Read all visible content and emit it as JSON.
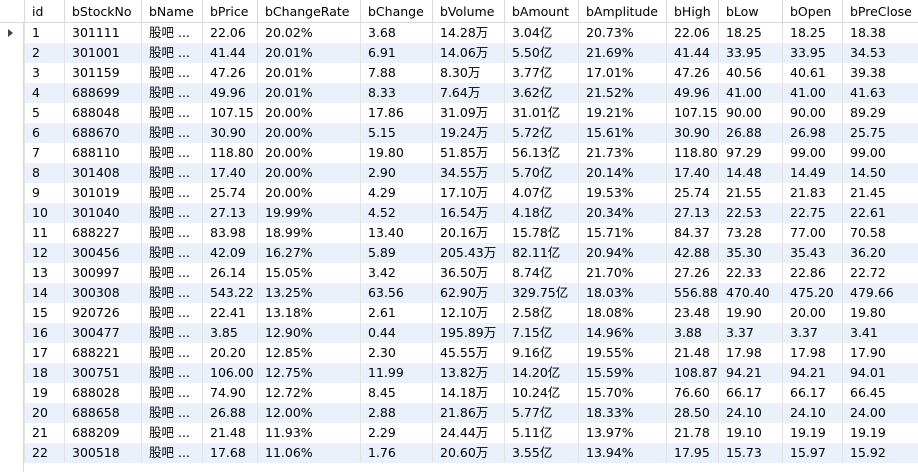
{
  "table": {
    "columns": [
      "id",
      "bStockNo",
      "bName",
      "bPrice",
      "bChangeRate",
      "bChange",
      "bVolume",
      "bAmount",
      "bAmplitude",
      "bHigh",
      "bLow",
      "bOpen",
      "bPreClose"
    ],
    "rows": [
      [
        "1",
        "301111",
        "股吧 ...",
        "22.06",
        "20.02%",
        "3.68",
        "14.28万",
        "3.04亿",
        "20.73%",
        "22.06",
        "18.25",
        "18.25",
        "18.38"
      ],
      [
        "2",
        "301001",
        "股吧 ...",
        "41.44",
        "20.01%",
        "6.91",
        "14.06万",
        "5.50亿",
        "21.69%",
        "41.44",
        "33.95",
        "33.95",
        "34.53"
      ],
      [
        "3",
        "301159",
        "股吧 ...",
        "47.26",
        "20.01%",
        "7.88",
        "8.30万",
        "3.77亿",
        "17.01%",
        "47.26",
        "40.56",
        "40.61",
        "39.38"
      ],
      [
        "4",
        "688699",
        "股吧 ...",
        "49.96",
        "20.01%",
        "8.33",
        "7.64万",
        "3.62亿",
        "21.52%",
        "49.96",
        "41.00",
        "41.00",
        "41.63"
      ],
      [
        "5",
        "688048",
        "股吧 ...",
        "107.15",
        "20.00%",
        "17.86",
        "31.09万",
        "31.01亿",
        "19.21%",
        "107.15",
        "90.00",
        "90.00",
        "89.29"
      ],
      [
        "6",
        "688670",
        "股吧 ...",
        "30.90",
        "20.00%",
        "5.15",
        "19.24万",
        "5.72亿",
        "15.61%",
        "30.90",
        "26.88",
        "26.98",
        "25.75"
      ],
      [
        "7",
        "688110",
        "股吧 ...",
        "118.80",
        "20.00%",
        "19.80",
        "51.85万",
        "56.13亿",
        "21.73%",
        "118.80",
        "97.29",
        "99.00",
        "99.00"
      ],
      [
        "8",
        "301408",
        "股吧 ...",
        "17.40",
        "20.00%",
        "2.90",
        "34.55万",
        "5.70亿",
        "20.14%",
        "17.40",
        "14.48",
        "14.49",
        "14.50"
      ],
      [
        "9",
        "301019",
        "股吧 ...",
        "25.74",
        "20.00%",
        "4.29",
        "17.10万",
        "4.07亿",
        "19.53%",
        "25.74",
        "21.55",
        "21.83",
        "21.45"
      ],
      [
        "10",
        "301040",
        "股吧 ...",
        "27.13",
        "19.99%",
        "4.52",
        "16.54万",
        "4.18亿",
        "20.34%",
        "27.13",
        "22.53",
        "22.75",
        "22.61"
      ],
      [
        "11",
        "688227",
        "股吧 ...",
        "83.98",
        "18.99%",
        "13.40",
        "20.16万",
        "15.78亿",
        "15.71%",
        "84.37",
        "73.28",
        "77.00",
        "70.58"
      ],
      [
        "12",
        "300456",
        "股吧 ...",
        "42.09",
        "16.27%",
        "5.89",
        "205.43万",
        "82.11亿",
        "20.94%",
        "42.88",
        "35.30",
        "35.43",
        "36.20"
      ],
      [
        "13",
        "300997",
        "股吧 ...",
        "26.14",
        "15.05%",
        "3.42",
        "36.50万",
        "8.74亿",
        "21.70%",
        "27.26",
        "22.33",
        "22.86",
        "22.72"
      ],
      [
        "14",
        "300308",
        "股吧 ...",
        "543.22",
        "13.25%",
        "63.56",
        "62.90万",
        "329.75亿",
        "18.03%",
        "556.88",
        "470.40",
        "475.20",
        "479.66"
      ],
      [
        "15",
        "920726",
        "股吧 ...",
        "22.41",
        "13.18%",
        "2.61",
        "12.10万",
        "2.58亿",
        "18.08%",
        "23.48",
        "19.90",
        "20.00",
        "19.80"
      ],
      [
        "16",
        "300477",
        "股吧 ...",
        "3.85",
        "12.90%",
        "0.44",
        "195.89万",
        "7.15亿",
        "14.96%",
        "3.88",
        "3.37",
        "3.37",
        "3.41"
      ],
      [
        "17",
        "688221",
        "股吧 ...",
        "20.20",
        "12.85%",
        "2.30",
        "45.55万",
        "9.16亿",
        "19.55%",
        "21.48",
        "17.98",
        "17.98",
        "17.90"
      ],
      [
        "18",
        "300751",
        "股吧 ...",
        "106.00",
        "12.75%",
        "11.99",
        "13.82万",
        "14.20亿",
        "15.59%",
        "108.87",
        "94.21",
        "94.21",
        "94.01"
      ],
      [
        "19",
        "688028",
        "股吧 ...",
        "74.90",
        "12.72%",
        "8.45",
        "14.18万",
        "10.24亿",
        "15.70%",
        "76.60",
        "66.17",
        "66.17",
        "66.45"
      ],
      [
        "20",
        "688658",
        "股吧 ...",
        "26.88",
        "12.00%",
        "2.88",
        "21.86万",
        "5.77亿",
        "18.33%",
        "28.50",
        "24.10",
        "24.10",
        "24.00"
      ],
      [
        "21",
        "688209",
        "股吧 ...",
        "21.48",
        "11.93%",
        "2.29",
        "24.44万",
        "5.11亿",
        "13.97%",
        "21.78",
        "19.10",
        "19.19",
        "19.19"
      ],
      [
        "22",
        "300518",
        "股吧 ...",
        "17.68",
        "11.06%",
        "1.76",
        "20.60万",
        "3.55亿",
        "13.94%",
        "17.95",
        "15.73",
        "15.97",
        "15.92"
      ]
    ]
  }
}
